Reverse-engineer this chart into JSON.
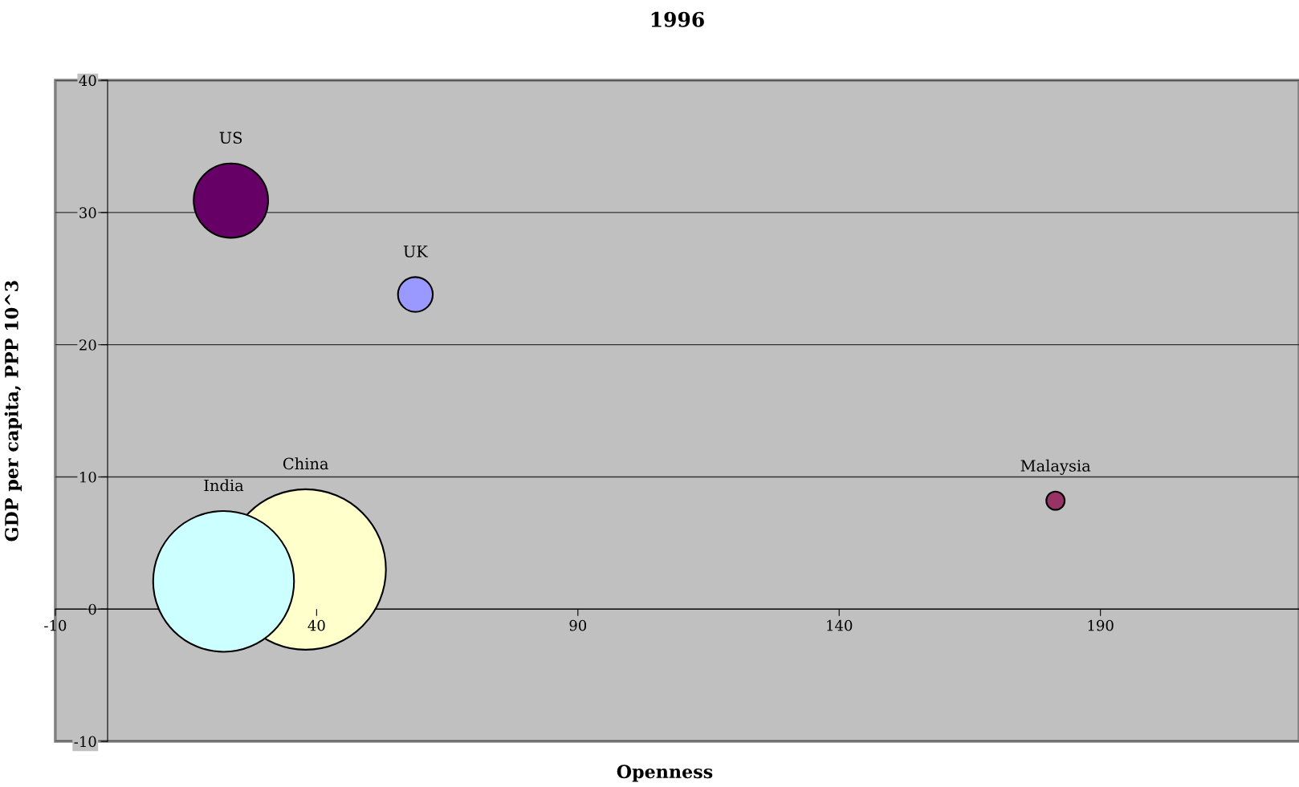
{
  "chart_data": {
    "type": "bubble",
    "title": "1996",
    "xlabel": "Openness",
    "ylabel": "GDP per capita, PPP 10^3",
    "series": [
      {
        "name": "US",
        "color": "#660066",
        "x": [
          23.6
        ],
        "values": [
          30.9
        ],
        "sizes": [
          0.215
        ]
      },
      {
        "name": "UK",
        "color": "#9999ff",
        "x": [
          58.9
        ],
        "values": [
          23.8
        ],
        "sizes": [
          0.047
        ]
      },
      {
        "name": "Malaysia",
        "color": "#993366",
        "x": [
          181.4
        ],
        "values": [
          8.2
        ],
        "sizes": [
          0.013
        ]
      },
      {
        "name": "China",
        "color": "#ffffcc",
        "x": [
          37.9
        ],
        "values": [
          3.0
        ],
        "sizes": [
          1
        ]
      },
      {
        "name": "India",
        "color": "#ccffff",
        "x": [
          22.2
        ],
        "values": [
          2.1
        ],
        "sizes": [
          0.77
        ]
      }
    ],
    "xlim": [
      -10,
      228
    ],
    "xticks": [
      -10,
      40,
      90,
      140,
      190
    ],
    "ylim": [
      -10,
      40
    ],
    "yticks": [
      -10,
      0,
      10,
      20,
      30,
      40
    ],
    "grid": "y",
    "legend": false
  }
}
